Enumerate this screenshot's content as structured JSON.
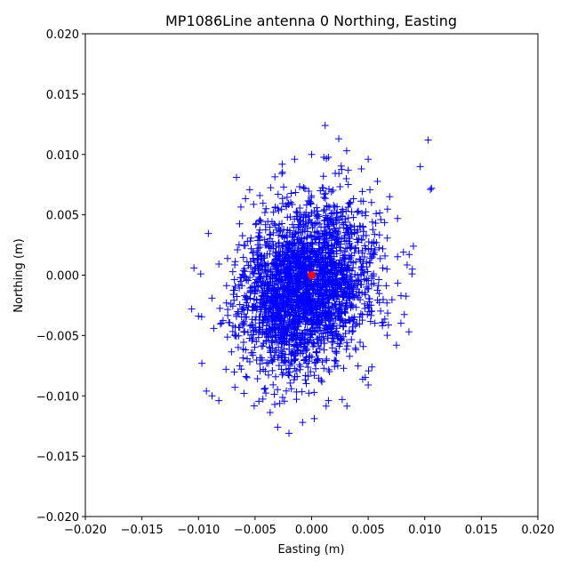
{
  "chart_data": {
    "type": "scatter",
    "title": "MP1086Line antenna 0 Northing, Easting",
    "xlabel": "Easting (m)",
    "ylabel": "Northing (m)",
    "xlim": [
      -0.02,
      0.02
    ],
    "ylim": [
      -0.02,
      0.02
    ],
    "xticks": [
      "-0.020",
      "-0.015",
      "-0.010",
      "-0.005",
      "0.000",
      "0.005",
      "0.010",
      "0.015",
      "0.020"
    ],
    "yticks": [
      "-0.020",
      "-0.015",
      "-0.010",
      "-0.005",
      "0.000",
      "0.005",
      "0.010",
      "0.015",
      "0.020"
    ],
    "grid": false,
    "series": [
      {
        "marker": "plus",
        "color": "#0000ff",
        "distribution": {
          "center": [
            -0.0005,
            -0.001
          ],
          "std": [
            0.003,
            0.0035
          ],
          "correlation": 0.2,
          "count": 2600
        },
        "points": [
          [
            0.0012,
            0.0124
          ],
          [
            0.0024,
            0.0113
          ],
          [
            0.0103,
            0.0112
          ],
          [
            0.0096,
            0.009
          ],
          [
            0.0106,
            0.0072
          ],
          [
            0.0105,
            0.0071
          ],
          [
            0.009,
            0.0024
          ],
          [
            0.0089,
            0.0005
          ],
          [
            -0.0106,
            -0.0028
          ],
          [
            -0.0104,
            0.0006
          ],
          [
            -0.0098,
            0.0001
          ],
          [
            -0.01,
            -0.0034
          ],
          [
            -0.0097,
            -0.0073
          ],
          [
            -0.0093,
            -0.0096
          ],
          [
            -0.0088,
            -0.01
          ],
          [
            -0.0082,
            -0.0104
          ],
          [
            -0.003,
            -0.0126
          ],
          [
            -0.002,
            -0.0131
          ],
          [
            -0.0008,
            -0.0122
          ],
          [
            0.005,
            -0.0091
          ],
          [
            0.0075,
            -0.0058
          ],
          [
            0.0079,
            -0.0017
          ],
          [
            0.0076,
            0.0047
          ],
          [
            0.0069,
            0.0065
          ],
          [
            0.005,
            0.0096
          ],
          [
            0.0031,
            0.0103
          ],
          [
            -0.0015,
            0.0096
          ],
          [
            -0.0026,
            0.0092
          ],
          [
            0.0,
            0.01
          ],
          [
            0.0044,
            0.0088
          ]
        ]
      },
      {
        "marker": "circle",
        "color": "#ff0000",
        "points": [
          [
            0.0,
            0.0
          ]
        ]
      }
    ]
  }
}
